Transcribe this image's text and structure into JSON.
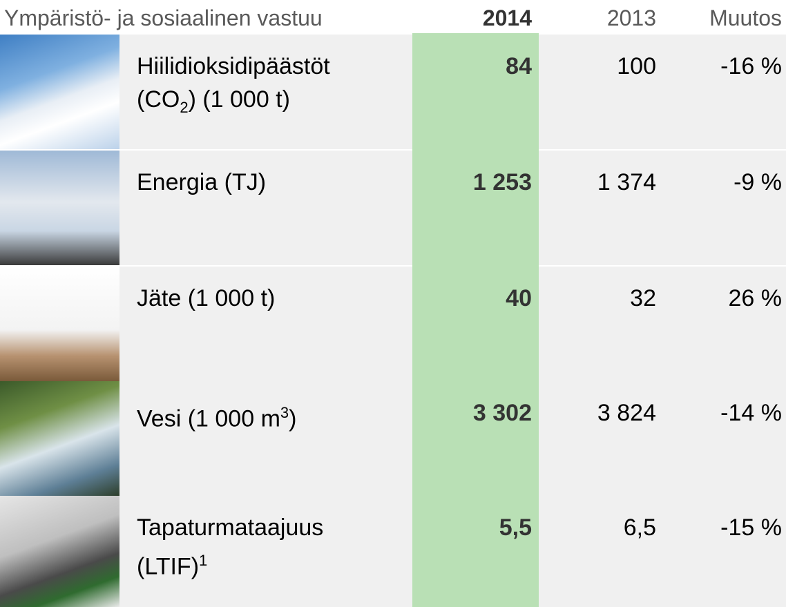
{
  "header": {
    "title": "Ympäristö- ja sosiaalinen vastuu",
    "col_2014": "2014",
    "col_2013": "2013",
    "col_change": "Muutos"
  },
  "table": {
    "rows": [
      {
        "label": "Hiilidioksidipäästöt (CO",
        "label_sub": "2",
        "label_end": ") (1 000 t)",
        "v2014": "84",
        "v2013": "100",
        "change": "-16 %"
      },
      {
        "label": "Energia (TJ)",
        "v2014": "1 253",
        "v2013": "1 374",
        "change": "-9 %"
      },
      {
        "label": "Jäte (1 000 t)",
        "v2014": "40",
        "v2013": "32",
        "change": "26 %"
      },
      {
        "label": "Vesi (1 000 m",
        "label_sup": "3",
        "label_end": ")",
        "v2014": "3 302",
        "v2013": "3 824",
        "change": "-14 %"
      },
      {
        "label": "Tapaturmataajuus (LTIF)",
        "label_sup": "1",
        "v2014": "5,5",
        "v2013": "6,5",
        "change": "-15 %"
      }
    ]
  }
}
